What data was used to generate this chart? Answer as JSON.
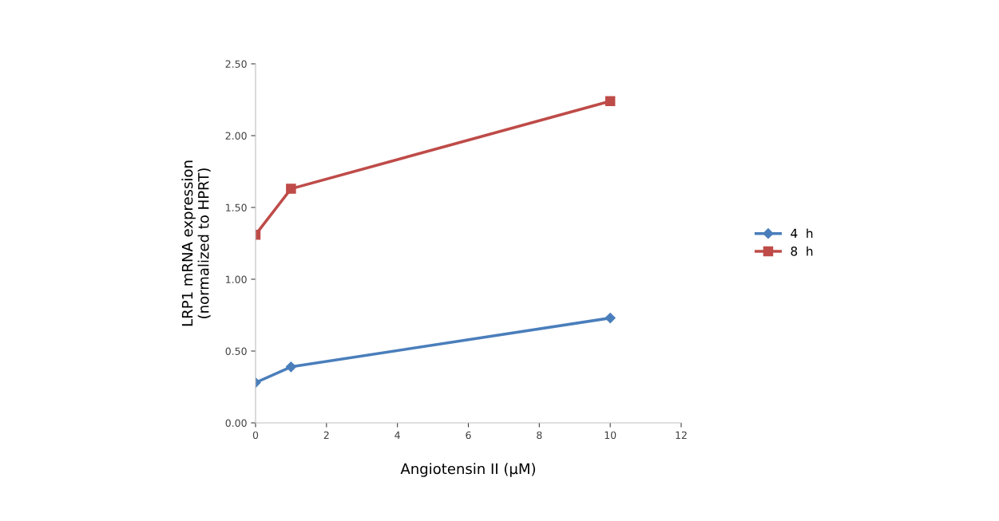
{
  "chart_data": {
    "type": "line",
    "xlabel": "Angiotensin II (µM)",
    "ylabel": "LRP1 mRNA expression\n(normalized to HPRT)",
    "x": [
      0,
      1,
      10
    ],
    "series": [
      {
        "name": "4  h",
        "color": "#4a7ebb",
        "marker": "diamond",
        "values": [
          0.28,
          0.39,
          0.73
        ]
      },
      {
        "name": "8  h",
        "color": "#be4b48",
        "marker": "square",
        "values": [
          1.31,
          1.63,
          2.24
        ]
      }
    ],
    "xlim": [
      0,
      12
    ],
    "xticks": [
      0,
      2,
      4,
      6,
      8,
      10,
      12
    ],
    "ylim": [
      0,
      2.5
    ],
    "yticks": [
      {
        "value": 0,
        "label": "0.00"
      },
      {
        "value": 0.5,
        "label": "0.50"
      },
      {
        "value": 1.0,
        "label": "1.00"
      },
      {
        "value": 1.5,
        "label": "1.50"
      },
      {
        "value": 2.0,
        "label": "2.00"
      },
      {
        "value": 2.5,
        "label": "2.50"
      }
    ],
    "grid": false,
    "legend": "right",
    "line_style": "solid"
  }
}
